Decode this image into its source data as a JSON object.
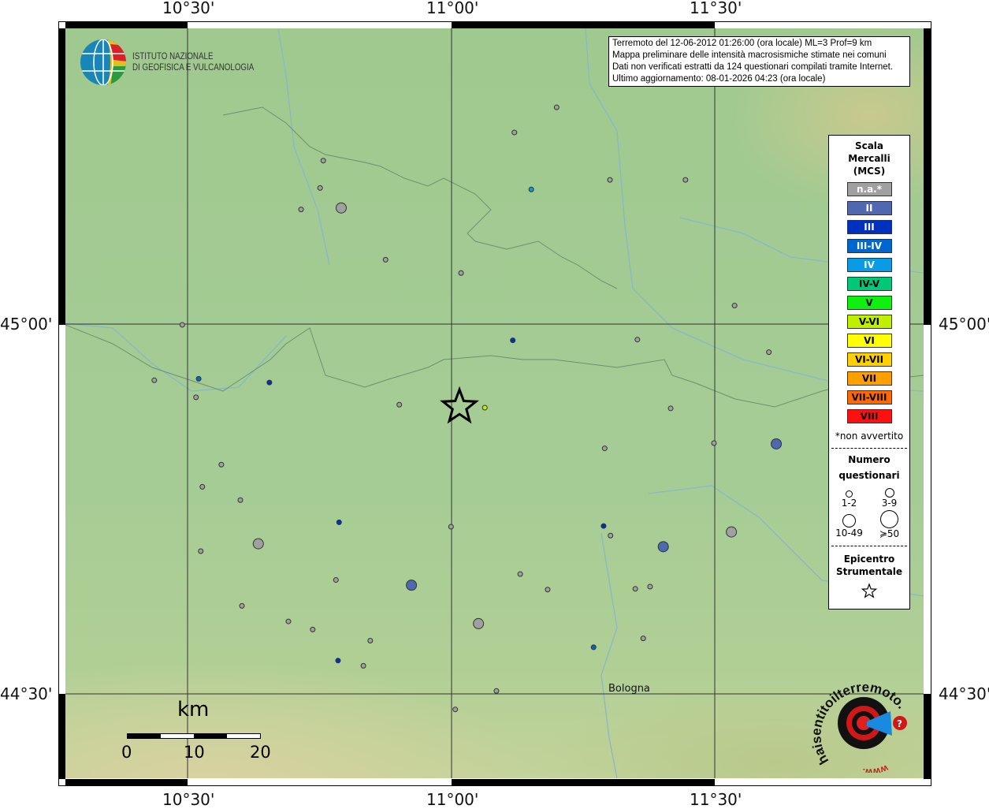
{
  "map": {
    "lon_ticks": [
      "10°30'",
      "11°00'",
      "11°30'"
    ],
    "lat_ticks": [
      "45°00'",
      "44°30'"
    ],
    "grid": true,
    "background_color": "#a5cc95",
    "city_label": "Bologna",
    "epicenter": {
      "lon": 11.015,
      "lat": 44.888
    },
    "points": [
      {
        "lon": 11.199,
        "lat": 45.293,
        "class": "n.a.",
        "n": "1-2"
      },
      {
        "lon": 11.119,
        "lat": 45.259,
        "class": "n.a.",
        "n": "1-2"
      },
      {
        "lon": 10.757,
        "lat": 45.221,
        "class": "n.a.",
        "n": "1-2"
      },
      {
        "lon": 10.751,
        "lat": 45.184,
        "class": "n.a.",
        "n": "1-2"
      },
      {
        "lon": 10.715,
        "lat": 45.155,
        "class": "n.a.",
        "n": "1-2"
      },
      {
        "lon": 11.3,
        "lat": 45.195,
        "class": "n.a.",
        "n": "1-2"
      },
      {
        "lon": 11.443,
        "lat": 45.195,
        "class": "n.a.",
        "n": "1-2"
      },
      {
        "lon": 10.875,
        "lat": 45.087,
        "class": "n.a.",
        "n": "1-2"
      },
      {
        "lon": 11.018,
        "lat": 45.069,
        "class": "n.a.",
        "n": "1-2"
      },
      {
        "lon": 11.536,
        "lat": 45.025,
        "class": "n.a.",
        "n": "1-2"
      },
      {
        "lon": 10.49,
        "lat": 44.999,
        "class": "n.a.",
        "n": "1-2"
      },
      {
        "lon": 11.352,
        "lat": 44.979,
        "class": "n.a.",
        "n": "1-2"
      },
      {
        "lon": 11.601,
        "lat": 44.962,
        "class": "n.a.",
        "n": "1-2"
      },
      {
        "lon": 10.437,
        "lat": 44.924,
        "class": "n.a.",
        "n": "1-2"
      },
      {
        "lon": 10.516,
        "lat": 44.901,
        "class": "n.a.",
        "n": "1-2"
      },
      {
        "lon": 10.901,
        "lat": 44.891,
        "class": "n.a.",
        "n": "1-2"
      },
      {
        "lon": 11.415,
        "lat": 44.886,
        "class": "n.a.",
        "n": "1-2"
      },
      {
        "lon": 11.29,
        "lat": 44.832,
        "class": "n.a.",
        "n": "1-2"
      },
      {
        "lon": 11.497,
        "lat": 44.839,
        "class": "n.a.",
        "n": "1-2"
      },
      {
        "lon": 10.564,
        "lat": 44.81,
        "class": "n.a.",
        "n": "1-2"
      },
      {
        "lon": 10.528,
        "lat": 44.78,
        "class": "n.a.",
        "n": "1-2"
      },
      {
        "lon": 10.6,
        "lat": 44.762,
        "class": "n.a.",
        "n": "1-2"
      },
      {
        "lon": 10.999,
        "lat": 44.726,
        "class": "n.a.",
        "n": "1-2"
      },
      {
        "lon": 11.301,
        "lat": 44.714,
        "class": "n.a.",
        "n": "1-2"
      },
      {
        "lon": 10.525,
        "lat": 44.693,
        "class": "n.a.",
        "n": "1-2"
      },
      {
        "lon": 11.13,
        "lat": 44.662,
        "class": "n.a.",
        "n": "1-2"
      },
      {
        "lon": 10.781,
        "lat": 44.654,
        "class": "n.a.",
        "n": "1-2"
      },
      {
        "lon": 11.182,
        "lat": 44.641,
        "class": "n.a.",
        "n": "1-2"
      },
      {
        "lon": 11.348,
        "lat": 44.642,
        "class": "n.a.",
        "n": "1-2"
      },
      {
        "lon": 11.376,
        "lat": 44.645,
        "class": "n.a.",
        "n": "1-2"
      },
      {
        "lon": 10.603,
        "lat": 44.619,
        "class": "n.a.",
        "n": "1-2"
      },
      {
        "lon": 10.691,
        "lat": 44.598,
        "class": "n.a.",
        "n": "1-2"
      },
      {
        "lon": 10.737,
        "lat": 44.587,
        "class": "n.a.",
        "n": "1-2"
      },
      {
        "lon": 10.846,
        "lat": 44.572,
        "class": "n.a.",
        "n": "1-2"
      },
      {
        "lon": 11.363,
        "lat": 44.575,
        "class": "n.a.",
        "n": "1-2"
      },
      {
        "lon": 10.833,
        "lat": 44.538,
        "class": "n.a.",
        "n": "1-2"
      },
      {
        "lon": 11.085,
        "lat": 44.504,
        "class": "n.a.",
        "n": "1-2"
      },
      {
        "lon": 11.007,
        "lat": 44.479,
        "class": "n.a.",
        "n": "1-2"
      },
      {
        "lon": 10.791,
        "lat": 45.157,
        "class": "n.a.",
        "n": "3-9"
      },
      {
        "lon": 10.634,
        "lat": 44.703,
        "class": "n.a.",
        "n": "3-9"
      },
      {
        "lon": 11.051,
        "lat": 44.595,
        "class": "n.a.",
        "n": "3-9"
      },
      {
        "lon": 11.53,
        "lat": 44.719,
        "class": "n.a.",
        "n": "3-9"
      },
      {
        "lon": 11.615,
        "lat": 44.838,
        "class": "II",
        "n": "3-9"
      },
      {
        "lon": 11.401,
        "lat": 44.699,
        "class": "II",
        "n": "3-9"
      },
      {
        "lon": 10.924,
        "lat": 44.647,
        "class": "II",
        "n": "3-9"
      },
      {
        "lon": 11.116,
        "lat": 44.978,
        "class": "III",
        "n": "1-2"
      },
      {
        "lon": 10.655,
        "lat": 44.921,
        "class": "III",
        "n": "1-2"
      },
      {
        "lon": 10.787,
        "lat": 44.732,
        "class": "III",
        "n": "1-2"
      },
      {
        "lon": 11.288,
        "lat": 44.727,
        "class": "III",
        "n": "1-2"
      },
      {
        "lon": 10.785,
        "lat": 44.545,
        "class": "III",
        "n": "1-2"
      },
      {
        "lon": 10.521,
        "lat": 44.926,
        "class": "III-IV",
        "n": "1-2"
      },
      {
        "lon": 11.269,
        "lat": 44.563,
        "class": "III-IV",
        "n": "1-2"
      },
      {
        "lon": 11.151,
        "lat": 45.182,
        "class": "IV",
        "n": "1-2"
      },
      {
        "lon": 11.063,
        "lat": 44.887,
        "class": "V-VI",
        "n": "1-2"
      }
    ]
  },
  "logo": {
    "name": "ISTITUTO NAZIONALE",
    "name2": "DI GEOFISICA E VULCANOLOGIA"
  },
  "hst_logo": {
    "text": "haisentitoilterremoto.it",
    "www": "www."
  },
  "info": [
    "Terremoto del 12-06-2012 01:26:00 (ora locale) ML=3 Prof=9 km",
    "Mappa preliminare delle intensità macrosismiche stimate nei comuni",
    "Dati non verificati estratti da 124 questionari compilati tramite Internet.",
    "Ultimo aggiornamento: 08-01-2026 04:23 (ora locale)"
  ],
  "legend": {
    "title1": "Scala",
    "title2": "Mercalli",
    "title3": "(MCS)",
    "classes": [
      {
        "label": "n.a.*",
        "color": "#a0a0a0",
        "text": "#fff"
      },
      {
        "label": "II",
        "color": "#4f68b0",
        "text": "#fff"
      },
      {
        "label": "III",
        "color": "#0030c0",
        "text": "#fff"
      },
      {
        "label": "III-IV",
        "color": "#0066d0",
        "text": "#fff"
      },
      {
        "label": "IV",
        "color": "#0a9ae6",
        "text": "#fff"
      },
      {
        "label": "IV-V",
        "color": "#00c878",
        "text": "#000"
      },
      {
        "label": "V",
        "color": "#10f010",
        "text": "#000"
      },
      {
        "label": "V-VI",
        "color": "#c0f000",
        "text": "#000"
      },
      {
        "label": "VI",
        "color": "#ffff00",
        "text": "#000"
      },
      {
        "label": "VI-VII",
        "color": "#ffd000",
        "text": "#000"
      },
      {
        "label": "VII",
        "color": "#ffa000",
        "text": "#000"
      },
      {
        "label": "VII-VIII",
        "color": "#ff6a00",
        "text": "#000"
      },
      {
        "label": "VIII",
        "color": "#ff1010",
        "text": "#000"
      }
    ],
    "note": "*non avvertito",
    "count_title1": "Numero",
    "count_title2": "questionari",
    "sizes": [
      "1-2",
      "3-9",
      "10-49",
      "≽50"
    ],
    "epi_title1": "Epicentro",
    "epi_title2": "Strumentale"
  },
  "scalebar": {
    "unit": "km",
    "labels": [
      "0",
      "10",
      "20"
    ]
  }
}
